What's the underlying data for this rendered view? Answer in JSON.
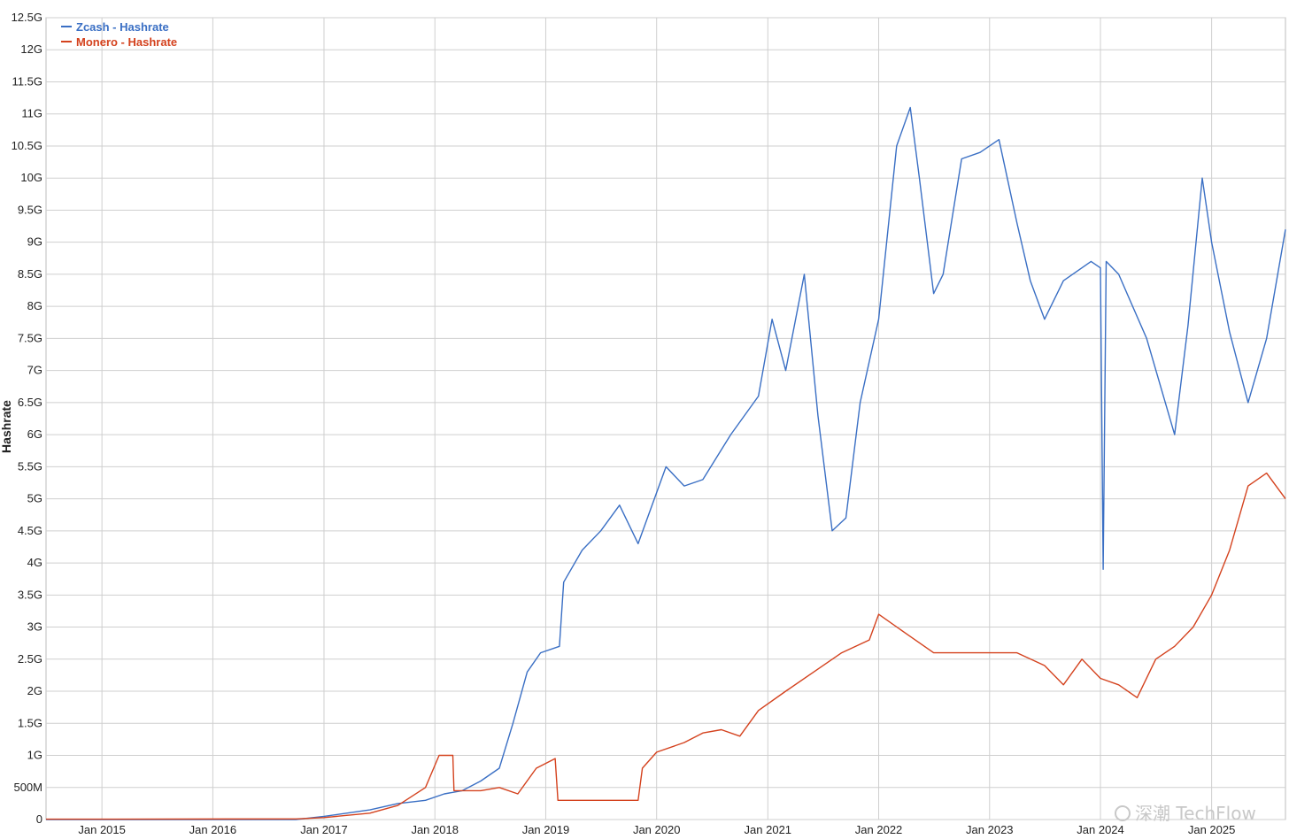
{
  "chart_data": {
    "type": "line",
    "title": "",
    "xlabel": "",
    "ylabel": "Hashrate",
    "x_range": [
      "2014-07-01",
      "2025-09-01"
    ],
    "ylim": [
      0,
      12500000000
    ],
    "grid": true,
    "legend_position": "top-left",
    "x_ticks": [
      "Jan 2015",
      "Jan 2016",
      "Jan 2017",
      "Jan 2018",
      "Jan 2019",
      "Jan 2020",
      "Jan 2021",
      "Jan 2022",
      "Jan 2023",
      "Jan 2024",
      "Jan 2025"
    ],
    "y_ticks": [
      {
        "value": 0,
        "label": "0"
      },
      {
        "value": 500000000,
        "label": "500M"
      },
      {
        "value": 1000000000,
        "label": "1G"
      },
      {
        "value": 1500000000,
        "label": "1.5G"
      },
      {
        "value": 2000000000,
        "label": "2G"
      },
      {
        "value": 2500000000,
        "label": "2.5G"
      },
      {
        "value": 3000000000,
        "label": "3G"
      },
      {
        "value": 3500000000,
        "label": "3.5G"
      },
      {
        "value": 4000000000,
        "label": "4G"
      },
      {
        "value": 4500000000,
        "label": "4.5G"
      },
      {
        "value": 5000000000,
        "label": "5G"
      },
      {
        "value": 5500000000,
        "label": "5.5G"
      },
      {
        "value": 6000000000,
        "label": "6G"
      },
      {
        "value": 6500000000,
        "label": "6.5G"
      },
      {
        "value": 7000000000,
        "label": "7G"
      },
      {
        "value": 7500000000,
        "label": "7.5G"
      },
      {
        "value": 8000000000,
        "label": "8G"
      },
      {
        "value": 8500000000,
        "label": "8.5G"
      },
      {
        "value": 9000000000,
        "label": "9G"
      },
      {
        "value": 9500000000,
        "label": "9.5G"
      },
      {
        "value": 10000000000,
        "label": "10G"
      },
      {
        "value": 10500000000,
        "label": "10.5G"
      },
      {
        "value": 11000000000,
        "label": "11G"
      },
      {
        "value": 11500000000,
        "label": "11.5G"
      },
      {
        "value": 12000000000,
        "label": "12G"
      },
      {
        "value": 12500000000,
        "label": "12.5G"
      }
    ],
    "series": [
      {
        "name": "Zcash - Hashrate",
        "color": "#3a6fc4",
        "points": [
          [
            "2014-07-01",
            0
          ],
          [
            "2016-10-01",
            0
          ],
          [
            "2017-01-01",
            50000000
          ],
          [
            "2017-06-01",
            150000000
          ],
          [
            "2017-09-01",
            250000000
          ],
          [
            "2017-12-01",
            300000000
          ],
          [
            "2018-02-01",
            400000000
          ],
          [
            "2018-04-01",
            450000000
          ],
          [
            "2018-06-01",
            600000000
          ],
          [
            "2018-08-01",
            800000000
          ],
          [
            "2018-09-15",
            1500000000
          ],
          [
            "2018-11-01",
            2300000000
          ],
          [
            "2018-12-15",
            2600000000
          ],
          [
            "2019-02-15",
            2700000000
          ],
          [
            "2019-03-01",
            3700000000
          ],
          [
            "2019-05-01",
            4200000000
          ],
          [
            "2019-07-01",
            4500000000
          ],
          [
            "2019-09-01",
            4900000000
          ],
          [
            "2019-11-01",
            4300000000
          ],
          [
            "2020-02-01",
            5500000000
          ],
          [
            "2020-04-01",
            5200000000
          ],
          [
            "2020-06-01",
            5300000000
          ],
          [
            "2020-09-01",
            6000000000
          ],
          [
            "2020-12-01",
            6600000000
          ],
          [
            "2021-01-15",
            7800000000
          ],
          [
            "2021-03-01",
            7000000000
          ],
          [
            "2021-05-01",
            8500000000
          ],
          [
            "2021-06-15",
            6300000000
          ],
          [
            "2021-08-01",
            4500000000
          ],
          [
            "2021-09-15",
            4700000000
          ],
          [
            "2021-11-01",
            6500000000
          ],
          [
            "2022-01-01",
            7800000000
          ],
          [
            "2022-03-01",
            10500000000
          ],
          [
            "2022-04-15",
            11100000000
          ],
          [
            "2022-05-15",
            10000000000
          ],
          [
            "2022-07-01",
            8200000000
          ],
          [
            "2022-08-01",
            8500000000
          ],
          [
            "2022-10-01",
            10300000000
          ],
          [
            "2022-12-01",
            10400000000
          ],
          [
            "2023-02-01",
            10600000000
          ],
          [
            "2023-04-01",
            9300000000
          ],
          [
            "2023-05-15",
            8400000000
          ],
          [
            "2023-07-01",
            7800000000
          ],
          [
            "2023-09-01",
            8400000000
          ],
          [
            "2023-12-01",
            8700000000
          ],
          [
            "2024-01-01",
            8600000000
          ],
          [
            "2024-01-10",
            3900000000
          ],
          [
            "2024-01-20",
            8700000000
          ],
          [
            "2024-03-01",
            8500000000
          ],
          [
            "2024-06-01",
            7500000000
          ],
          [
            "2024-09-01",
            6000000000
          ],
          [
            "2024-10-15",
            7700000000
          ],
          [
            "2024-12-01",
            10000000000
          ],
          [
            "2025-01-01",
            9000000000
          ],
          [
            "2025-03-01",
            7600000000
          ],
          [
            "2025-05-01",
            6500000000
          ],
          [
            "2025-07-01",
            7500000000
          ],
          [
            "2025-09-01",
            9200000000
          ]
        ]
      },
      {
        "name": "Monero - Hashrate",
        "color": "#d4421e",
        "points": [
          [
            "2014-07-01",
            5000000
          ],
          [
            "2016-10-01",
            10000000
          ],
          [
            "2017-01-01",
            30000000
          ],
          [
            "2017-06-01",
            100000000
          ],
          [
            "2017-09-01",
            220000000
          ],
          [
            "2017-12-01",
            500000000
          ],
          [
            "2018-01-15",
            1000000000
          ],
          [
            "2018-03-01",
            1000000000
          ],
          [
            "2018-03-05",
            450000000
          ],
          [
            "2018-06-01",
            450000000
          ],
          [
            "2018-08-01",
            500000000
          ],
          [
            "2018-10-01",
            400000000
          ],
          [
            "2018-12-01",
            800000000
          ],
          [
            "2019-02-01",
            950000000
          ],
          [
            "2019-02-10",
            300000000
          ],
          [
            "2019-06-01",
            300000000
          ],
          [
            "2019-11-01",
            300000000
          ],
          [
            "2019-11-15",
            800000000
          ],
          [
            "2020-01-01",
            1050000000
          ],
          [
            "2020-04-01",
            1200000000
          ],
          [
            "2020-06-01",
            1350000000
          ],
          [
            "2020-08-01",
            1400000000
          ],
          [
            "2020-10-01",
            1300000000
          ],
          [
            "2020-12-01",
            1700000000
          ],
          [
            "2021-03-01",
            2000000000
          ],
          [
            "2021-06-01",
            2300000000
          ],
          [
            "2021-09-01",
            2600000000
          ],
          [
            "2021-12-01",
            2800000000
          ],
          [
            "2022-01-01",
            3200000000
          ],
          [
            "2022-04-01",
            2900000000
          ],
          [
            "2022-07-01",
            2600000000
          ],
          [
            "2022-10-01",
            2600000000
          ],
          [
            "2023-01-01",
            2600000000
          ],
          [
            "2023-04-01",
            2600000000
          ],
          [
            "2023-07-01",
            2400000000
          ],
          [
            "2023-09-01",
            2100000000
          ],
          [
            "2023-11-01",
            2500000000
          ],
          [
            "2024-01-01",
            2200000000
          ],
          [
            "2024-03-01",
            2100000000
          ],
          [
            "2024-05-01",
            1900000000
          ],
          [
            "2024-07-01",
            2500000000
          ],
          [
            "2024-09-01",
            2700000000
          ],
          [
            "2024-11-01",
            3000000000
          ],
          [
            "2025-01-01",
            3500000000
          ],
          [
            "2025-03-01",
            4200000000
          ],
          [
            "2025-05-01",
            5200000000
          ],
          [
            "2025-07-01",
            5400000000
          ],
          [
            "2025-09-01",
            5000000000
          ]
        ]
      }
    ]
  },
  "watermark": "深潮 TechFlow"
}
